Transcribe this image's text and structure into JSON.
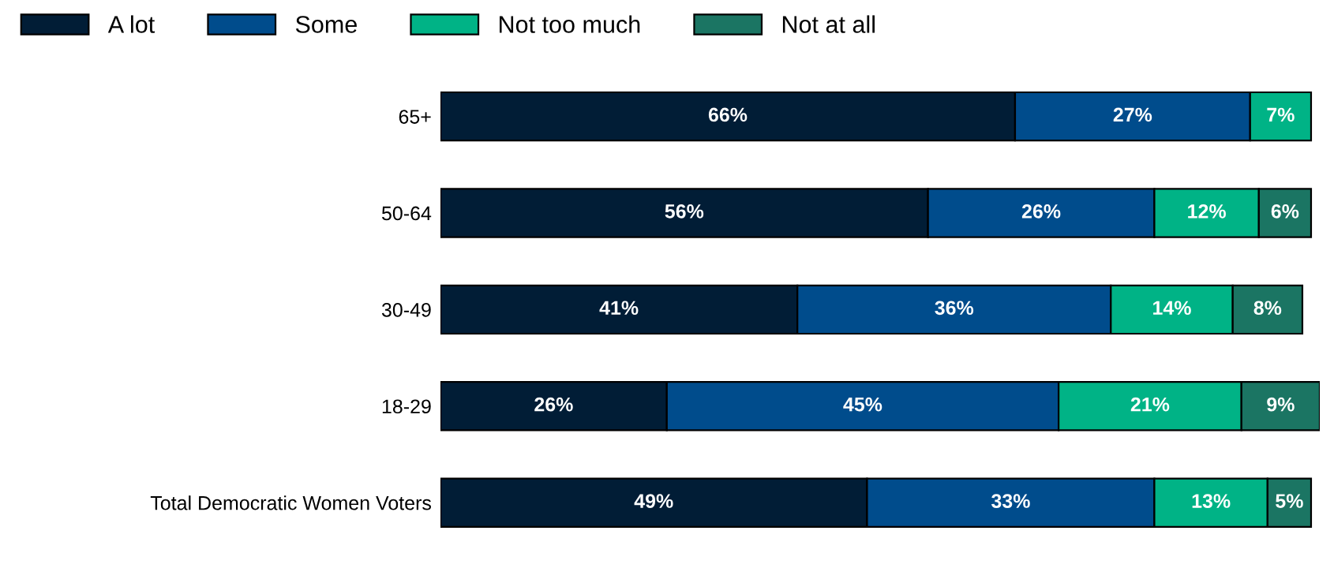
{
  "chart_data": {
    "type": "bar",
    "orientation": "horizontal",
    "stacked": true,
    "legend": "top left",
    "categories": [
      "65+",
      "50-64",
      "30-49",
      "18-29",
      "Total Democratic Women Voters"
    ],
    "series": [
      {
        "name": "A lot",
        "color": "#011d36",
        "values": [
          66,
          56,
          41,
          26,
          49
        ],
        "value_labels": [
          "66%",
          "56%",
          "41%",
          "26%",
          "49%"
        ]
      },
      {
        "name": "Some",
        "color": "#004c8c",
        "values": [
          27,
          26,
          36,
          45,
          33
        ],
        "value_labels": [
          "27%",
          "26%",
          "36%",
          "45%",
          "33%"
        ]
      },
      {
        "name": "Not too much",
        "color": "#00b386",
        "values": [
          7,
          12,
          14,
          21,
          13
        ],
        "value_labels": [
          "7%",
          "12%",
          "14%",
          "21%",
          "13%"
        ]
      },
      {
        "name": "Not at all",
        "color": "#1b7563",
        "values": [
          null,
          6,
          8,
          9,
          5
        ],
        "value_labels": [
          null,
          "6%",
          "8%",
          "9%",
          "5%"
        ]
      }
    ]
  }
}
